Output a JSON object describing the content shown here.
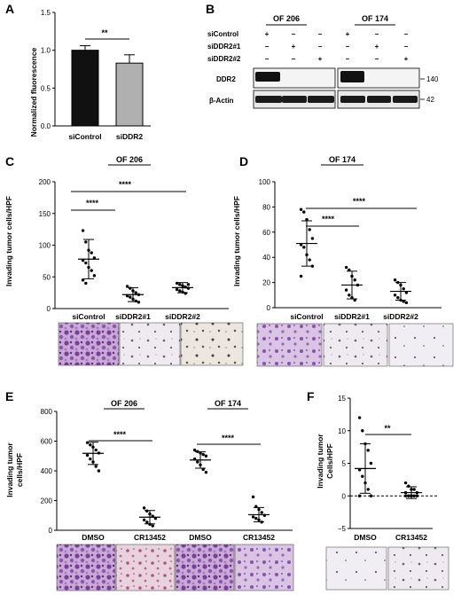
{
  "panels": {
    "A": {
      "label": "A",
      "ylabel": "Normalized fluorescence",
      "sig": "**",
      "chart_data": {
        "type": "bar",
        "categories": [
          "siControl",
          "siDDR2"
        ],
        "values": [
          1.0,
          0.83
        ],
        "errors": [
          0.06,
          0.11
        ],
        "bar_colors": [
          "#111111",
          "#b0b0b0"
        ],
        "ylim": [
          0,
          1.5
        ],
        "yticks": [
          "0.0",
          "0.5",
          "1.0",
          "1.5"
        ]
      }
    },
    "B": {
      "label": "B",
      "cell_lines": [
        "OF 206",
        "OF 174"
      ],
      "rows": [
        {
          "label": "siControl",
          "marks": [
            "+",
            "−",
            "−",
            "+",
            "−",
            "−"
          ]
        },
        {
          "label": "siDDR2#1",
          "marks": [
            "−",
            "+",
            "−",
            "−",
            "+",
            "−"
          ]
        },
        {
          "label": "siDDR2#2",
          "marks": [
            "−",
            "−",
            "+",
            "−",
            "−",
            "+"
          ]
        }
      ],
      "blots": [
        {
          "label": "DDR2",
          "kda": "140"
        },
        {
          "label": "β-Actin",
          "kda": "42"
        }
      ]
    },
    "C": {
      "label": "C",
      "title": "OF 206",
      "ylabel": "Invading tumor cells/HPF",
      "sig": [
        "****",
        "****"
      ],
      "chart_data": {
        "type": "scatter",
        "categories": [
          "siControl",
          "siDDR2#1",
          "siDDR2#2"
        ],
        "ylim": [
          0,
          200
        ],
        "yticks": [
          "0",
          "50",
          "100",
          "150",
          "200"
        ],
        "means": [
          78,
          22,
          33
        ],
        "sd": [
          31,
          11,
          8
        ],
        "points": [
          [
            123,
            105,
            92,
            88,
            80,
            76,
            72,
            65,
            60,
            52,
            45,
            40
          ],
          [
            35,
            32,
            28,
            25,
            22,
            20,
            18,
            15,
            12,
            10
          ],
          [
            40,
            38,
            36,
            34,
            32,
            30,
            28,
            26,
            24,
            38
          ]
        ]
      }
    },
    "D": {
      "label": "D",
      "title": "OF 174",
      "ylabel": "Invading tumor cells/HPF",
      "sig": [
        "****",
        "****"
      ],
      "chart_data": {
        "type": "scatter",
        "categories": [
          "siControl",
          "siDDR2#1",
          "siDDR2#2"
        ],
        "ylim": [
          0,
          100
        ],
        "yticks": [
          "0",
          "20",
          "40",
          "60",
          "80",
          "100"
        ],
        "means": [
          51,
          18,
          13
        ],
        "sd": [
          18,
          11,
          7
        ],
        "points": [
          [
            78,
            76,
            70,
            62,
            55,
            50,
            48,
            42,
            38,
            33,
            25
          ],
          [
            32,
            30,
            25,
            22,
            18,
            14,
            10,
            8,
            6
          ],
          [
            22,
            20,
            18,
            15,
            12,
            10,
            8,
            6,
            5,
            4
          ]
        ]
      }
    },
    "E": {
      "label": "E",
      "titles": [
        "OF 206",
        "OF 174"
      ],
      "ylabel1": "Invading tumor",
      "ylabel2": "cells/HPF",
      "sig": [
        "****",
        "****"
      ],
      "chart_data": {
        "type": "scatter",
        "categories": [
          "DMSO",
          "CR13452",
          "DMSO",
          "CR13452"
        ],
        "ylim": [
          0,
          800
        ],
        "yticks": [
          "0",
          "200",
          "400",
          "600",
          "800"
        ],
        "means": [
          518,
          88,
          473,
          105
        ],
        "sd": [
          75,
          45,
          55,
          48
        ],
        "points": [
          [
            590,
            575,
            560,
            540,
            520,
            505,
            480,
            460,
            430,
            400
          ],
          [
            150,
            130,
            110,
            95,
            80,
            70,
            55,
            40,
            30
          ],
          [
            540,
            530,
            520,
            510,
            500,
            480,
            460,
            440,
            410,
            390
          ],
          [
            225,
            160,
            140,
            120,
            100,
            90,
            80,
            70,
            55
          ]
        ]
      }
    },
    "F": {
      "label": "F",
      "ylabel1": "Invading tumor",
      "ylabel2": "Cells/HPF",
      "sig": "**",
      "chart_data": {
        "type": "scatter",
        "categories": [
          "DMSO",
          "CR13452"
        ],
        "ylim": [
          -5,
          15
        ],
        "yticks": [
          "−5",
          "0",
          "5",
          "10",
          "15"
        ],
        "means": [
          4.2,
          0.5
        ],
        "sd": [
          3.8,
          0.9
        ],
        "points": [
          [
            12,
            10,
            8,
            7,
            5,
            4,
            3,
            2,
            1,
            0,
            0
          ],
          [
            2,
            1.5,
            1,
            1,
            0.5,
            0.5,
            0,
            0,
            0,
            0,
            0,
            0,
            0
          ]
        ]
      }
    }
  }
}
